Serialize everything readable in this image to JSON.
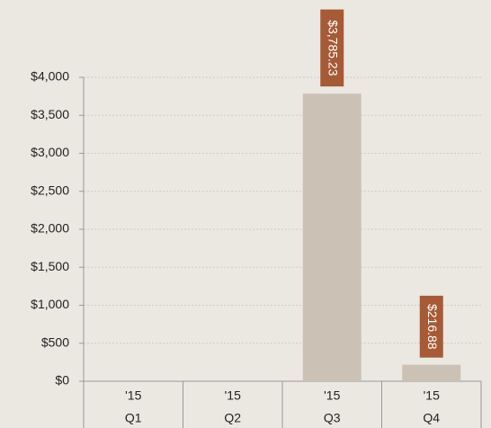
{
  "chart_data": {
    "type": "bar",
    "categories": [
      "Q1",
      "Q2",
      "Q3",
      "Q4"
    ],
    "year_labels": [
      "'15",
      "'15",
      "'15",
      "'15"
    ],
    "values": [
      null,
      null,
      3785.23,
      216.88
    ],
    "value_labels": [
      null,
      null,
      "$3,785.23",
      "$216.88"
    ],
    "color": "#cbc1b5",
    "label_color": "#a65a36",
    "ylim": [
      0,
      4000
    ],
    "yticks": [
      {
        "value": 0,
        "label": "$0"
      },
      {
        "value": 500,
        "label": "$500"
      },
      {
        "value": 1000,
        "label": "$1,000"
      },
      {
        "value": 1500,
        "label": "$1,500"
      },
      {
        "value": 2000,
        "label": "$2,000"
      },
      {
        "value": 2500,
        "label": "$2,500"
      },
      {
        "value": 3000,
        "label": "$3,000"
      },
      {
        "value": 3500,
        "label": "$3,500"
      },
      {
        "value": 4000,
        "label": "$4,000"
      }
    ],
    "grid": true
  }
}
